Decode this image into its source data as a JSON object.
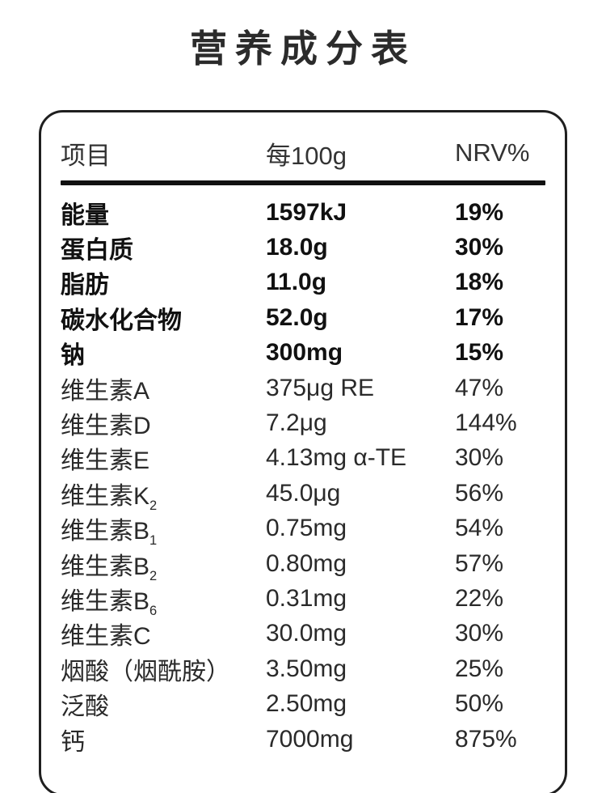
{
  "title": "营养成分表",
  "table": {
    "headers": [
      "项目",
      "每100g",
      "NRV%"
    ],
    "rows": [
      {
        "name": "能量",
        "sub": "",
        "amount": "1597kJ",
        "nrv": "19%",
        "bold": true
      },
      {
        "name": "蛋白质",
        "sub": "",
        "amount": "18.0g",
        "nrv": "30%",
        "bold": true
      },
      {
        "name": "脂肪",
        "sub": "",
        "amount": "11.0g",
        "nrv": "18%",
        "bold": true
      },
      {
        "name": "碳水化合物",
        "sub": "",
        "amount": "52.0g",
        "nrv": "17%",
        "bold": true
      },
      {
        "name": "钠",
        "sub": "",
        "amount": "300mg",
        "nrv": "15%",
        "bold": true
      },
      {
        "name": "维生素A",
        "sub": "",
        "amount": "375μg RE",
        "nrv": "47%",
        "bold": false
      },
      {
        "name": "维生素D",
        "sub": "",
        "amount": "7.2μg",
        "nrv": "144%",
        "bold": false
      },
      {
        "name": "维生素E",
        "sub": "",
        "amount": "4.13mg α-TE",
        "nrv": "30%",
        "bold": false
      },
      {
        "name": "维生素K",
        "sub": "2",
        "amount": "45.0μg",
        "nrv": "56%",
        "bold": false
      },
      {
        "name": "维生素B",
        "sub": "1",
        "amount": "0.75mg",
        "nrv": "54%",
        "bold": false
      },
      {
        "name": "维生素B",
        "sub": "2",
        "amount": "0.80mg",
        "nrv": "57%",
        "bold": false
      },
      {
        "name": "维生素B",
        "sub": "6",
        "amount": "0.31mg",
        "nrv": "22%",
        "bold": false
      },
      {
        "name": "维生素C",
        "sub": "",
        "amount": "30.0mg",
        "nrv": "30%",
        "bold": false
      },
      {
        "name": "烟酸（烟酰胺）",
        "sub": "",
        "amount": "3.50mg",
        "nrv": "25%",
        "bold": false
      },
      {
        "name": "泛酸",
        "sub": "",
        "amount": "2.50mg",
        "nrv": "50%",
        "bold": false
      },
      {
        "name": "钙",
        "sub": "",
        "amount": "7000mg",
        "nrv": "875%",
        "bold": false
      }
    ]
  }
}
